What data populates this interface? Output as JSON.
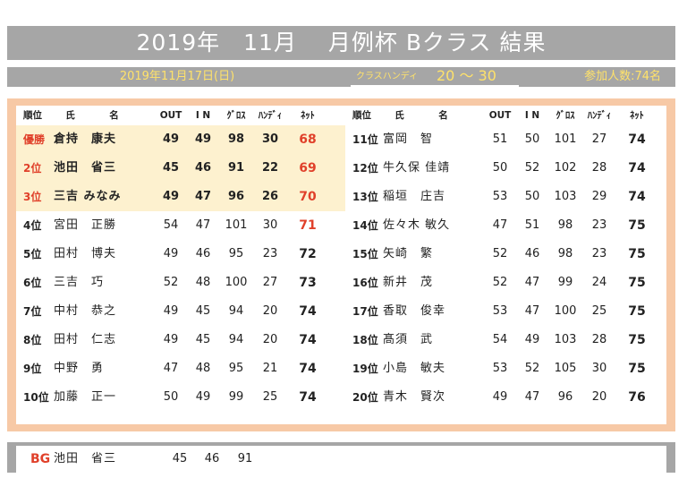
{
  "title": "2019年　11月　 月例杯 Bクラス 結果",
  "date": "2019年11月17日(日)",
  "handicap_label": "クラスハンディ",
  "handicap_range": "20 ～ 30",
  "participants": "参加人数:74名",
  "headers": {
    "rank": "順位",
    "name": "氏　名",
    "out": "OUT",
    "in": "I N",
    "gross": "ｸﾞﾛｽ",
    "hdcp": "ﾊﾝﾃﾞｨ",
    "net": "ﾈｯﾄ"
  },
  "left": [
    {
      "rank": "優勝",
      "name": "倉持　康夫",
      "out": "49",
      "in": "49",
      "gross": "98",
      "hdcp": "30",
      "net": "68"
    },
    {
      "rank": "2位",
      "name": "池田　省三",
      "out": "45",
      "in": "46",
      "gross": "91",
      "hdcp": "22",
      "net": "69"
    },
    {
      "rank": "3位",
      "name": "三吉 みなみ",
      "out": "49",
      "in": "47",
      "gross": "96",
      "hdcp": "26",
      "net": "70"
    },
    {
      "rank": "4位",
      "name": "宮田　正勝",
      "out": "54",
      "in": "47",
      "gross": "101",
      "hdcp": "30",
      "net": "71"
    },
    {
      "rank": "5位",
      "name": "田村　博夫",
      "out": "49",
      "in": "46",
      "gross": "95",
      "hdcp": "23",
      "net": "72"
    },
    {
      "rank": "6位",
      "name": "三吉　巧",
      "out": "52",
      "in": "48",
      "gross": "100",
      "hdcp": "27",
      "net": "73"
    },
    {
      "rank": "7位",
      "name": "中村　恭之",
      "out": "49",
      "in": "45",
      "gross": "94",
      "hdcp": "20",
      "net": "74"
    },
    {
      "rank": "8位",
      "name": "田村　仁志",
      "out": "49",
      "in": "45",
      "gross": "94",
      "hdcp": "20",
      "net": "74"
    },
    {
      "rank": "9位",
      "name": "中野　勇",
      "out": "47",
      "in": "48",
      "gross": "95",
      "hdcp": "21",
      "net": "74"
    },
    {
      "rank": "10位",
      "name": "加藤　正一",
      "out": "50",
      "in": "49",
      "gross": "99",
      "hdcp": "25",
      "net": "74"
    }
  ],
  "right": [
    {
      "rank": "11位",
      "name": "富岡　智",
      "out": "51",
      "in": "50",
      "gross": "101",
      "hdcp": "27",
      "net": "74"
    },
    {
      "rank": "12位",
      "name": "牛久保 佳靖",
      "out": "50",
      "in": "52",
      "gross": "102",
      "hdcp": "28",
      "net": "74"
    },
    {
      "rank": "13位",
      "name": "稲垣　庄吉",
      "out": "53",
      "in": "50",
      "gross": "103",
      "hdcp": "29",
      "net": "74"
    },
    {
      "rank": "14位",
      "name": "佐々木 敏久",
      "out": "47",
      "in": "51",
      "gross": "98",
      "hdcp": "23",
      "net": "75"
    },
    {
      "rank": "15位",
      "name": "矢崎　繁",
      "out": "52",
      "in": "46",
      "gross": "98",
      "hdcp": "23",
      "net": "75"
    },
    {
      "rank": "16位",
      "name": "新井　茂",
      "out": "52",
      "in": "47",
      "gross": "99",
      "hdcp": "24",
      "net": "75"
    },
    {
      "rank": "17位",
      "name": "香取　俊幸",
      "out": "53",
      "in": "47",
      "gross": "100",
      "hdcp": "25",
      "net": "75"
    },
    {
      "rank": "18位",
      "name": "髙須　武",
      "out": "54",
      "in": "49",
      "gross": "103",
      "hdcp": "28",
      "net": "75"
    },
    {
      "rank": "19位",
      "name": "小島　敏夫",
      "out": "53",
      "in": "52",
      "gross": "105",
      "hdcp": "30",
      "net": "75"
    },
    {
      "rank": "20位",
      "name": "青木　賢次",
      "out": "49",
      "in": "47",
      "gross": "96",
      "hdcp": "20",
      "net": "76"
    }
  ],
  "bg": {
    "label": "BG",
    "name": "池田　省三",
    "out": "45",
    "in": "46",
    "gross": "91"
  },
  "colors": {
    "accent_red": "#e0402a",
    "header_gray": "#a6a6a6",
    "panel_peach": "#f7c9a6",
    "highlight": "#fdf1cf",
    "date_yellow": "#ffe26a"
  }
}
